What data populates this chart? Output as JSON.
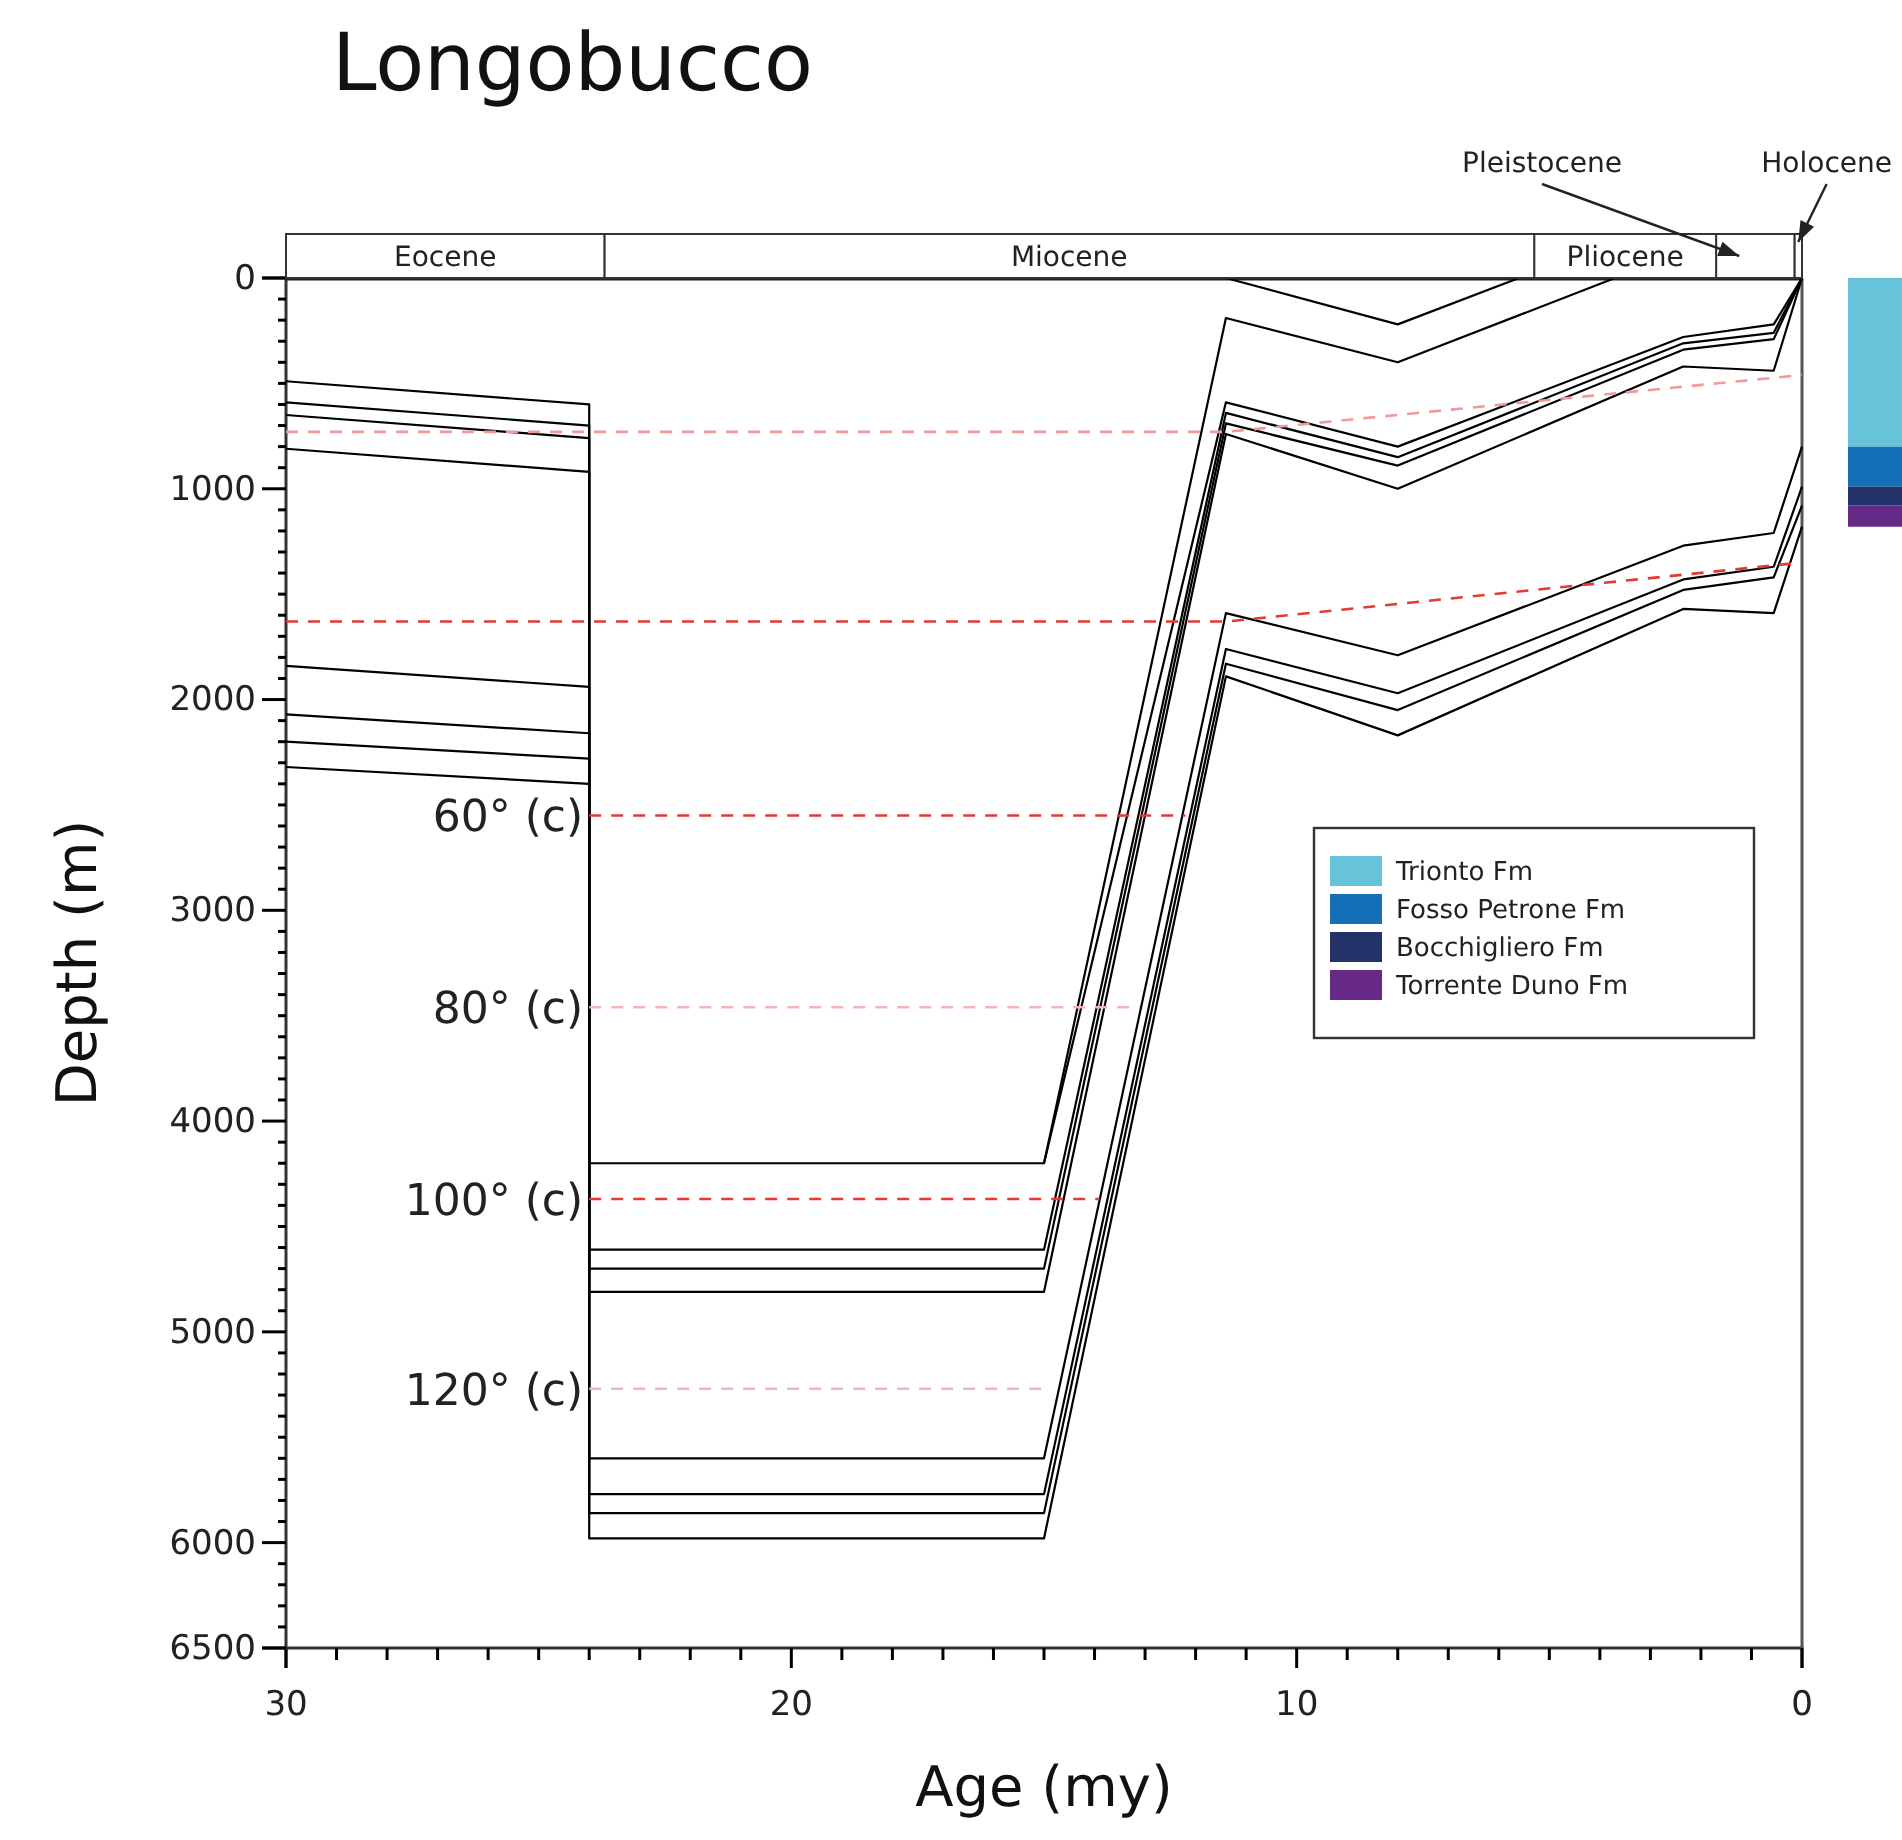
{
  "chart_data": [
    {
      "type": "line",
      "xlabel": "Age (my)",
      "ylabel": "Depth (m)",
      "xlim": [
        30,
        0
      ],
      "ylim": [
        6500,
        0
      ],
      "xticks": [
        30,
        {
          "value": 29,
          "label": null
        },
        {
          "value": 28,
          "label": null
        },
        {
          "value": 27,
          "label": null
        },
        {
          "value": 26,
          "label": null
        },
        {
          "value": 25,
          "label": null
        },
        {
          "value": 24,
          "label": null
        },
        {
          "value": 23,
          "label": null
        },
        {
          "value": 22,
          "label": null
        },
        {
          "value": 21,
          "label": null
        },
        20,
        {
          "value": 19,
          "label": null
        },
        {
          "value": 18,
          "label": null
        },
        {
          "value": 17,
          "label": null
        },
        {
          "value": 16,
          "label": null
        },
        {
          "value": 15,
          "label": null
        },
        {
          "value": 14,
          "label": null
        },
        {
          "value": 13,
          "label": null
        },
        {
          "value": 12,
          "label": null
        },
        {
          "value": 11,
          "label": null
        },
        10,
        {
          "value": 9,
          "label": null
        },
        {
          "value": 8,
          "label": null
        },
        {
          "value": 7,
          "label": null
        },
        {
          "value": 6,
          "label": null
        },
        {
          "value": 5,
          "label": null
        },
        {
          "value": 4,
          "label": null
        },
        {
          "value": 3,
          "label": null
        },
        {
          "value": 2,
          "label": null
        },
        {
          "value": 1,
          "label": null
        },
        0
      ],
      "yticks": [
        0,
        {
          "value": 100,
          "label": null
        },
        {
          "value": 200,
          "label": null
        },
        {
          "value": 300,
          "label": null
        },
        {
          "value": 400,
          "label": null
        },
        {
          "value": 500,
          "label": null
        },
        {
          "value": 600,
          "label": null
        },
        {
          "value": 700,
          "label": null
        },
        {
          "value": 800,
          "label": null
        },
        {
          "value": 900,
          "label": null
        },
        1000,
        {
          "value": 1100,
          "label": null
        },
        {
          "value": 1200,
          "label": null
        },
        {
          "value": 1300,
          "label": null
        },
        {
          "value": 1400,
          "label": null
        },
        {
          "value": 1500,
          "label": null
        },
        {
          "value": 1600,
          "label": null
        },
        {
          "value": 1700,
          "label": null
        },
        {
          "value": 1800,
          "label": null
        },
        {
          "value": 1900,
          "label": null
        },
        2000,
        {
          "value": 2100,
          "label": null
        },
        {
          "value": 2200,
          "label": null
        },
        {
          "value": 2300,
          "label": null
        },
        {
          "value": 2400,
          "label": null
        },
        {
          "value": 2500,
          "label": null
        },
        {
          "value": 2600,
          "label": null
        },
        {
          "value": 2700,
          "label": null
        },
        {
          "value": 2800,
          "label": null
        },
        {
          "value": 2900,
          "label": null
        },
        3000,
        {
          "value": 3100,
          "label": null
        },
        {
          "value": 3200,
          "label": null
        },
        {
          "value": 3300,
          "label": null
        },
        {
          "value": 3400,
          "label": null
        },
        {
          "value": 3500,
          "label": null
        },
        {
          "value": 3600,
          "label": null
        },
        {
          "value": 3700,
          "label": null
        },
        {
          "value": 3800,
          "label": null
        },
        {
          "value": 3900,
          "label": null
        },
        4000,
        {
          "value": 4100,
          "label": null
        },
        {
          "value": 4200,
          "label": null
        },
        {
          "value": 4300,
          "label": null
        },
        {
          "value": 4400,
          "label": null
        },
        {
          "value": 4500,
          "label": null
        },
        {
          "value": 4600,
          "label": null
        },
        {
          "value": 4700,
          "label": null
        },
        {
          "value": 4800,
          "label": null
        },
        {
          "value": 4900,
          "label": null
        },
        5000,
        {
          "value": 5100,
          "label": null
        },
        {
          "value": 5200,
          "label": null
        },
        {
          "value": 5300,
          "label": null
        },
        {
          "value": 5400,
          "label": null
        },
        {
          "value": 5500,
          "label": null
        },
        {
          "value": 5600,
          "label": null
        },
        {
          "value": 5700,
          "label": null
        },
        {
          "value": 5800,
          "label": null
        },
        {
          "value": 5900,
          "label": null
        },
        6000,
        {
          "value": 6100,
          "label": null
        },
        {
          "value": 6200,
          "label": null
        },
        {
          "value": 6300,
          "label": null
        },
        {
          "value": 6400,
          "label": null
        },
        6500
      ],
      "series": [
        {
          "color": "#000000",
          "x": [
            30,
            24,
            24,
            15,
            11.4,
            8,
            2.35,
            0.56,
            0
          ],
          "values": [
            490,
            600,
            4200,
            4200,
            590,
            800,
            280,
            220,
            0
          ]
        },
        {
          "color": "#000000",
          "x": [
            30,
            24,
            24,
            15,
            11.4,
            8,
            2.35,
            0.56,
            0
          ],
          "values": [
            590,
            700,
            4610,
            4610,
            640,
            850,
            310,
            260,
            0
          ]
        },
        {
          "color": "#000000",
          "x": [
            30,
            24,
            24,
            15,
            11.4,
            8,
            2.35,
            0.56,
            0
          ],
          "values": [
            650,
            760,
            4700,
            4700,
            690,
            890,
            340,
            290,
            0
          ]
        },
        {
          "color": "#000000",
          "x": [
            30,
            24,
            24,
            15,
            11.4,
            8,
            2.35,
            0.56,
            0
          ],
          "values": [
            810,
            920,
            4810,
            4810,
            740,
            1000,
            420,
            440,
            0
          ]
        },
        {
          "color": "#000000",
          "x": [
            30,
            24,
            24,
            15,
            11.4,
            8,
            2.35,
            0.56,
            0
          ],
          "values": [
            1840,
            1940,
            5600,
            5600,
            1590,
            1790,
            1270,
            1210,
            800
          ]
        },
        {
          "color": "#000000",
          "x": [
            30,
            24,
            24,
            15,
            11.4,
            8,
            2.35,
            0.56,
            0
          ],
          "values": [
            2070,
            2160,
            5770,
            5770,
            1760,
            1970,
            1430,
            1370,
            990
          ]
        },
        {
          "color": "#000000",
          "x": [
            30,
            24,
            24,
            15,
            11.4,
            8,
            2.35,
            0.56,
            0
          ],
          "values": [
            2200,
            2280,
            5860,
            5860,
            1830,
            2050,
            1480,
            1420,
            1080
          ]
        },
        {
          "color": "#000000",
          "x": [
            30,
            24,
            24,
            15,
            11.4,
            8,
            2.35,
            0.56,
            0
          ],
          "values": [
            2320,
            2400,
            5980,
            5980,
            1890,
            2170,
            1570,
            1590,
            1180
          ]
        },
        {
          "color": "#000000",
          "x": [
            11.4,
            8,
            5.6
          ],
          "values": [
            0,
            220,
            0
          ]
        },
        {
          "color": "#000000",
          "x": [
            15,
            11.4,
            8,
            3.7
          ],
          "values": [
            4200,
            190,
            400,
            0
          ]
        },
        {
          "color": "#f29a9a",
          "line_style": "dashed",
          "x": [
            30,
            11.4,
            0
          ],
          "values": [
            730,
            730,
            460
          ]
        },
        {
          "color": "#e53935",
          "line_style": "dashed",
          "x": [
            30,
            11.4,
            0
          ],
          "values": [
            1630,
            1630,
            1350
          ]
        },
        {
          "name": "60° (c)",
          "color": "#e53935",
          "line_style": "dashed",
          "x": [
            24,
            12.2
          ],
          "values": [
            2550,
            2550
          ]
        },
        {
          "name": "80° (c)",
          "color": "#f5b5b5",
          "line_style": "dashed",
          "x": [
            24,
            13.1
          ],
          "values": [
            3460,
            3460
          ]
        },
        {
          "name": "100° (c)",
          "color": "#e53935",
          "line_style": "dashed",
          "x": [
            24,
            13.9
          ],
          "values": [
            4370,
            4370
          ]
        },
        {
          "name": "120° (c)",
          "color": "#f5b5b5",
          "line_style": "dashed",
          "x": [
            24,
            14.9
          ],
          "values": [
            5270,
            5270
          ]
        }
      ]
    },
    {
      "type": "bar",
      "stacked": true,
      "categories": [
        null
      ],
      "ylim": [
        6500,
        0
      ],
      "tick_labels": false,
      "legend": "left",
      "series": [
        {
          "name": "Trionto Fm",
          "color": "#66c3d9",
          "values": [
            800
          ]
        },
        {
          "name": "Fosso Petrone Fm",
          "color": "#1570b7",
          "values": [
            190
          ]
        },
        {
          "name": "Bocchigliero Fm",
          "color": "#23336a",
          "values": [
            90
          ]
        },
        {
          "name": "Torrente Duno Fm",
          "color": "#662a86",
          "values": [
            100
          ]
        }
      ]
    },
    {
      "type": "bar",
      "title": "Longobucco",
      "orientation": "horizontal",
      "stacked": true,
      "categories": [
        null
      ],
      "xlim": [
        30,
        0
      ],
      "tick_labels": false,
      "series": [
        {
          "name": "Holocene",
          "color": "#ffffff",
          "values": [
            0.15
          ]
        },
        {
          "name": "Pleistocene",
          "color": "#ffffff",
          "values": [
            1.55
          ]
        },
        {
          "name": "Pliocene",
          "color": "#ffffff",
          "values": [
            3.6
          ]
        },
        {
          "name": "Miocene",
          "color": "#ffffff",
          "values": [
            18.4
          ]
        },
        {
          "name": "Eocene",
          "color": "#ffffff",
          "values": [
            6.3
          ]
        }
      ]
    }
  ]
}
